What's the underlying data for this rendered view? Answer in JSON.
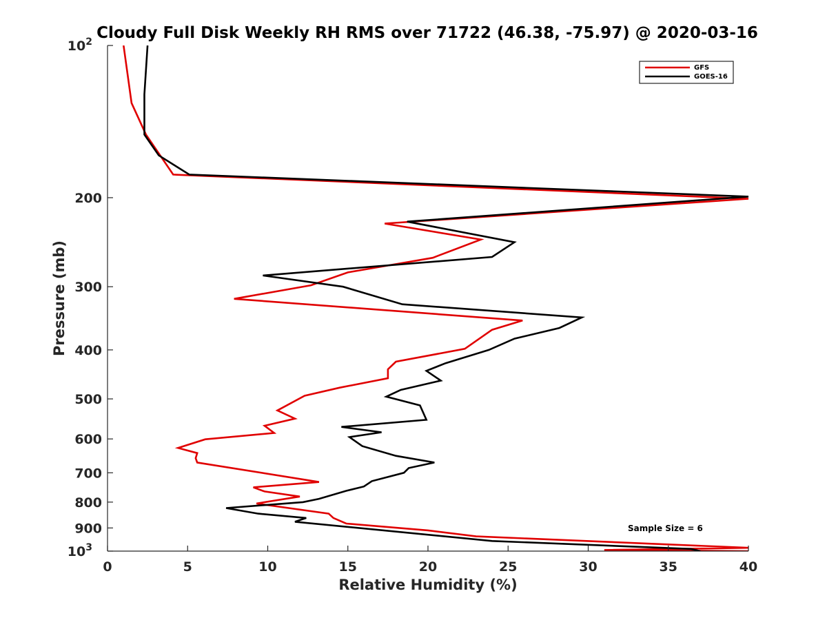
{
  "chart_data": {
    "type": "line",
    "title": "Cloudy Full Disk Weekly RH RMS over 71722 (46.38, -75.97) @ 2020-03-16",
    "xlabel": "Relative Humidity (%)",
    "ylabel": "Pressure (mb)",
    "xlim": [
      0,
      40
    ],
    "ylim": [
      100,
      1000
    ],
    "yscale": "log",
    "y_reversed": true,
    "x_ticks": [
      "0",
      "5",
      "10",
      "15",
      "20",
      "25",
      "30",
      "35",
      "40"
    ],
    "y_ticks": [
      {
        "value": 100,
        "label": "10",
        "sup": "2"
      },
      {
        "value": 200,
        "label": "200",
        "sup": ""
      },
      {
        "value": 300,
        "label": "300",
        "sup": ""
      },
      {
        "value": 400,
        "label": "400",
        "sup": ""
      },
      {
        "value": 500,
        "label": "500",
        "sup": ""
      },
      {
        "value": 600,
        "label": "600",
        "sup": ""
      },
      {
        "value": 700,
        "label": "700",
        "sup": ""
      },
      {
        "value": 800,
        "label": "800",
        "sup": ""
      },
      {
        "value": 900,
        "label": "900",
        "sup": ""
      },
      {
        "value": 1000,
        "label": "10",
        "sup": "3"
      }
    ],
    "legend_position": "top-right",
    "annotation": "Sample Size = 6",
    "series": [
      {
        "name": "GFS",
        "color": "#e00000",
        "points": [
          [
            1.0,
            100
          ],
          [
            1.5,
            130
          ],
          [
            2.4,
            150
          ],
          [
            4.1,
            180
          ],
          [
            40,
            201
          ],
          [
            17.3,
            225
          ],
          [
            23.3,
            242
          ],
          [
            20.3,
            263
          ],
          [
            15.0,
            281
          ],
          [
            12.7,
            298
          ],
          [
            7.9,
            317
          ],
          [
            25.9,
            350
          ],
          [
            24.0,
            365
          ],
          [
            22.3,
            398
          ],
          [
            18.0,
            422
          ],
          [
            17.5,
            437
          ],
          [
            17.5,
            455
          ],
          [
            14.5,
            475
          ],
          [
            12.3,
            493
          ],
          [
            10.6,
            527
          ],
          [
            11.7,
            547
          ],
          [
            9.8,
            565
          ],
          [
            10.4,
            584
          ],
          [
            6.1,
            601
          ],
          [
            4.4,
            625
          ],
          [
            5.6,
            640
          ],
          [
            5.5,
            655
          ],
          [
            5.6,
            668
          ],
          [
            13.2,
            730
          ],
          [
            9.1,
            748
          ],
          [
            9.8,
            762
          ],
          [
            12.0,
            780
          ],
          [
            9.3,
            805
          ],
          [
            13.8,
            843
          ],
          [
            14.1,
            860
          ],
          [
            14.9,
            882
          ],
          [
            20.0,
            910
          ],
          [
            23.0,
            935
          ],
          [
            40,
            985
          ],
          [
            31.0,
            995
          ],
          [
            40,
            1000
          ]
        ]
      },
      {
        "name": "GOES-16",
        "color": "#000000",
        "points": [
          [
            2.5,
            100
          ],
          [
            2.3,
            125
          ],
          [
            2.3,
            150
          ],
          [
            3.2,
            165
          ],
          [
            5.1,
            180
          ],
          [
            40,
            199
          ],
          [
            18.7,
            223
          ],
          [
            25.4,
            245
          ],
          [
            24.0,
            262
          ],
          [
            9.7,
            285
          ],
          [
            14.7,
            300
          ],
          [
            18.4,
            325
          ],
          [
            29.6,
            345
          ],
          [
            28.2,
            362
          ],
          [
            25.4,
            380
          ],
          [
            23.8,
            400
          ],
          [
            21.1,
            425
          ],
          [
            19.9,
            440
          ],
          [
            20.8,
            460
          ],
          [
            18.3,
            480
          ],
          [
            17.4,
            495
          ],
          [
            19.5,
            515
          ],
          [
            19.9,
            550
          ],
          [
            14.6,
            568
          ],
          [
            17.1,
            582
          ],
          [
            15.1,
            595
          ],
          [
            15.9,
            620
          ],
          [
            18.0,
            648
          ],
          [
            20.4,
            668
          ],
          [
            18.8,
            685
          ],
          [
            18.5,
            700
          ],
          [
            16.5,
            727
          ],
          [
            16.0,
            745
          ],
          [
            14.9,
            760
          ],
          [
            13.2,
            788
          ],
          [
            12.2,
            800
          ],
          [
            7.4,
            822
          ],
          [
            9.4,
            843
          ],
          [
            12.4,
            860
          ],
          [
            11.7,
            875
          ],
          [
            24.0,
            955
          ],
          [
            36.4,
            990
          ],
          [
            37.0,
            1000
          ]
        ]
      }
    ]
  }
}
